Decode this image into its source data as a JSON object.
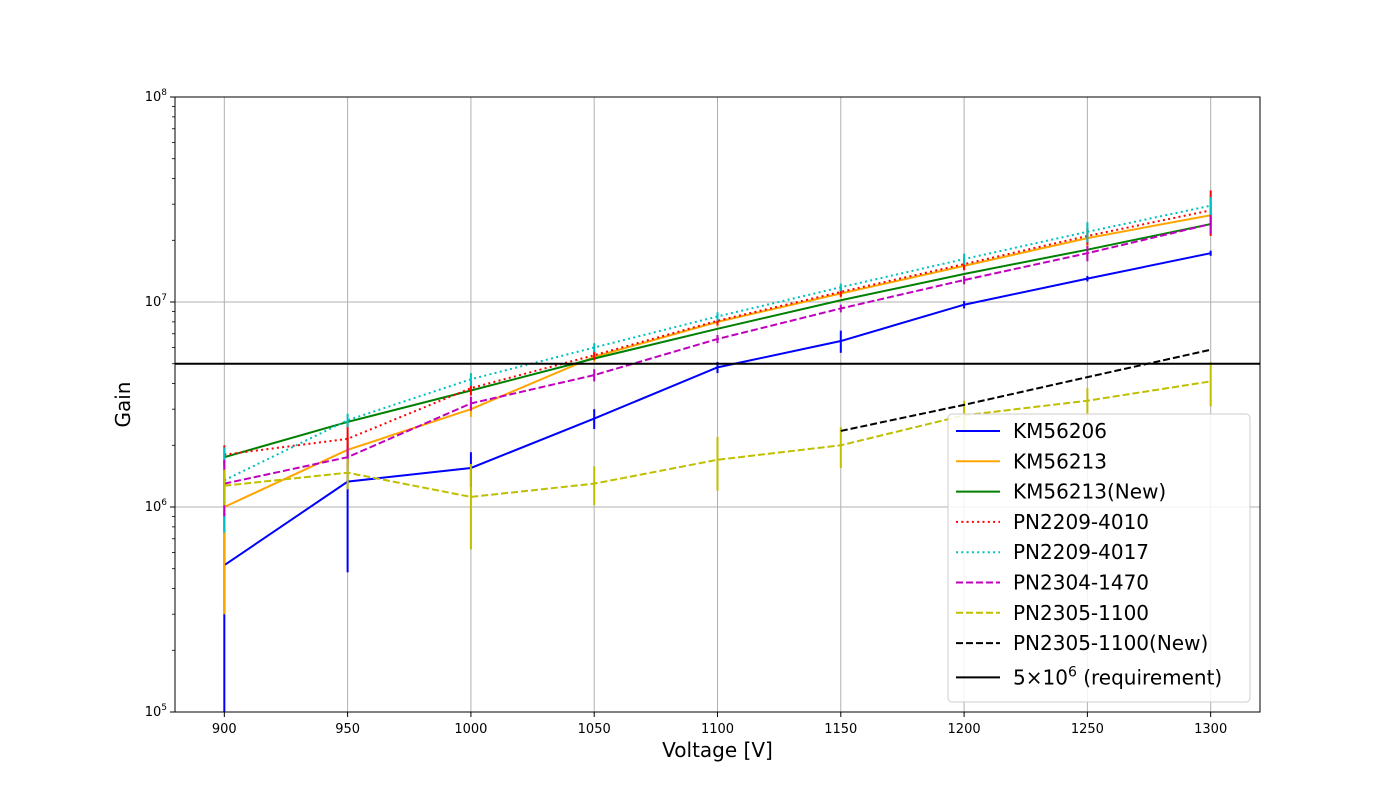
{
  "chart_data": {
    "type": "line",
    "title": "",
    "xlabel": "Voltage [V]",
    "ylabel": "Gain",
    "xlim": [
      880,
      1320
    ],
    "ylim": [
      100000,
      100000000
    ],
    "yscale": "log",
    "grid": true,
    "legend_position": "lower-right",
    "x_ticks": [
      900,
      950,
      1000,
      1050,
      1100,
      1150,
      1200,
      1250,
      1300
    ],
    "x_tick_labels": [
      "900",
      "950",
      "1000",
      "1050",
      "1100",
      "1150",
      "1200",
      "1250",
      "1300"
    ],
    "y_ticks": [
      {
        "value": 100000,
        "base": "10",
        "exp": "5"
      },
      {
        "value": 1000000,
        "base": "10",
        "exp": "6"
      },
      {
        "value": 10000000,
        "base": "10",
        "exp": "7"
      },
      {
        "value": 100000000,
        "base": "10",
        "exp": "8"
      }
    ],
    "series": [
      {
        "name": "KM56206",
        "color": "#0000ff",
        "dash": "solid",
        "x": [
          900,
          950,
          1000,
          1050,
          1100,
          1150,
          1200,
          1250,
          1300
        ],
        "y": [
          520000,
          1330000,
          1550000,
          2700000,
          4800000,
          6450000,
          9700000,
          13000000,
          17300000
        ],
        "err": [
          430000,
          850000,
          300000,
          300000,
          300000,
          800000,
          400000,
          400000,
          500000
        ]
      },
      {
        "name": "KM56213",
        "color": "#ffa500",
        "dash": "solid",
        "x": [
          900,
          950,
          1000,
          1050,
          1100,
          1150,
          1200,
          1250,
          1300
        ],
        "y": [
          1000000,
          1900000,
          3000000,
          5400000,
          8000000,
          11000000,
          15000000,
          20500000,
          26500000
        ],
        "err": [
          700000,
          250000,
          250000,
          300000,
          400000,
          500000,
          700000,
          2000000,
          3000000
        ]
      },
      {
        "name": "KM56213(New)",
        "color": "#008000",
        "dash": "solid",
        "x": [
          900,
          950,
          1000,
          1050,
          1100,
          1150,
          1200,
          1250,
          1300
        ],
        "y": [
          1750000,
          2600000,
          3700000,
          5300000,
          7400000,
          10200000,
          13700000,
          18000000,
          24000000
        ],
        "err": []
      },
      {
        "name": "PN2209-4010",
        "color": "#ff0000",
        "dash": "dotted",
        "x": [
          900,
          950,
          1000,
          1050,
          1100,
          1150,
          1200,
          1250,
          1300
        ],
        "y": [
          1800000,
          2150000,
          3800000,
          5500000,
          8100000,
          11200000,
          15300000,
          21000000,
          28000000
        ],
        "err": [
          200000,
          400000,
          300000,
          300000,
          400000,
          600000,
          1000000,
          2000000,
          7000000
        ]
      },
      {
        "name": "PN2209-4017",
        "color": "#00bfbf",
        "dash": "dotted",
        "x": [
          900,
          950,
          1000,
          1050,
          1100,
          1150,
          1200,
          1250,
          1300
        ],
        "y": [
          1350000,
          2650000,
          4200000,
          6000000,
          8500000,
          11800000,
          16200000,
          22000000,
          29500000
        ],
        "err": [
          600000,
          200000,
          300000,
          300000,
          400000,
          500000,
          1000000,
          2500000,
          3000000
        ]
      },
      {
        "name": "PN2304-1470",
        "color": "#bf00bf",
        "dash": "dashed",
        "x": [
          900,
          950,
          1000,
          1050,
          1100,
          1150,
          1200,
          1250,
          1300
        ],
        "y": [
          1300000,
          1750000,
          3200000,
          4400000,
          6600000,
          9300000,
          12800000,
          17300000,
          24000000
        ],
        "err": [
          400000,
          200000,
          250000,
          300000,
          300000,
          400000,
          600000,
          1500000,
          2500000
        ]
      },
      {
        "name": "PN2305-1100",
        "color": "#bfbf00",
        "dash": "dashed",
        "x": [
          900,
          950,
          1000,
          1050,
          1100,
          1150,
          1200,
          1250,
          1300
        ],
        "y": [
          1270000,
          1470000,
          1120000,
          1300000,
          1700000,
          2000000,
          2800000,
          3300000,
          4100000
        ],
        "err": [
          250000,
          250000,
          500000,
          280000,
          500000,
          450000,
          500000,
          500000,
          1000000
        ]
      },
      {
        "name": "PN2305-1100(New)",
        "color": "#000000",
        "dash": "dashed",
        "x": [
          1150,
          1200,
          1250,
          1300
        ],
        "y": [
          2350000,
          3150000,
          4300000,
          5850000
        ],
        "err": []
      }
    ],
    "reference_lines": [
      {
        "label_math": "5×10",
        "label_sup": "6",
        "label_text": " (requirement)",
        "y": 5000000,
        "color": "#000000"
      }
    ]
  }
}
